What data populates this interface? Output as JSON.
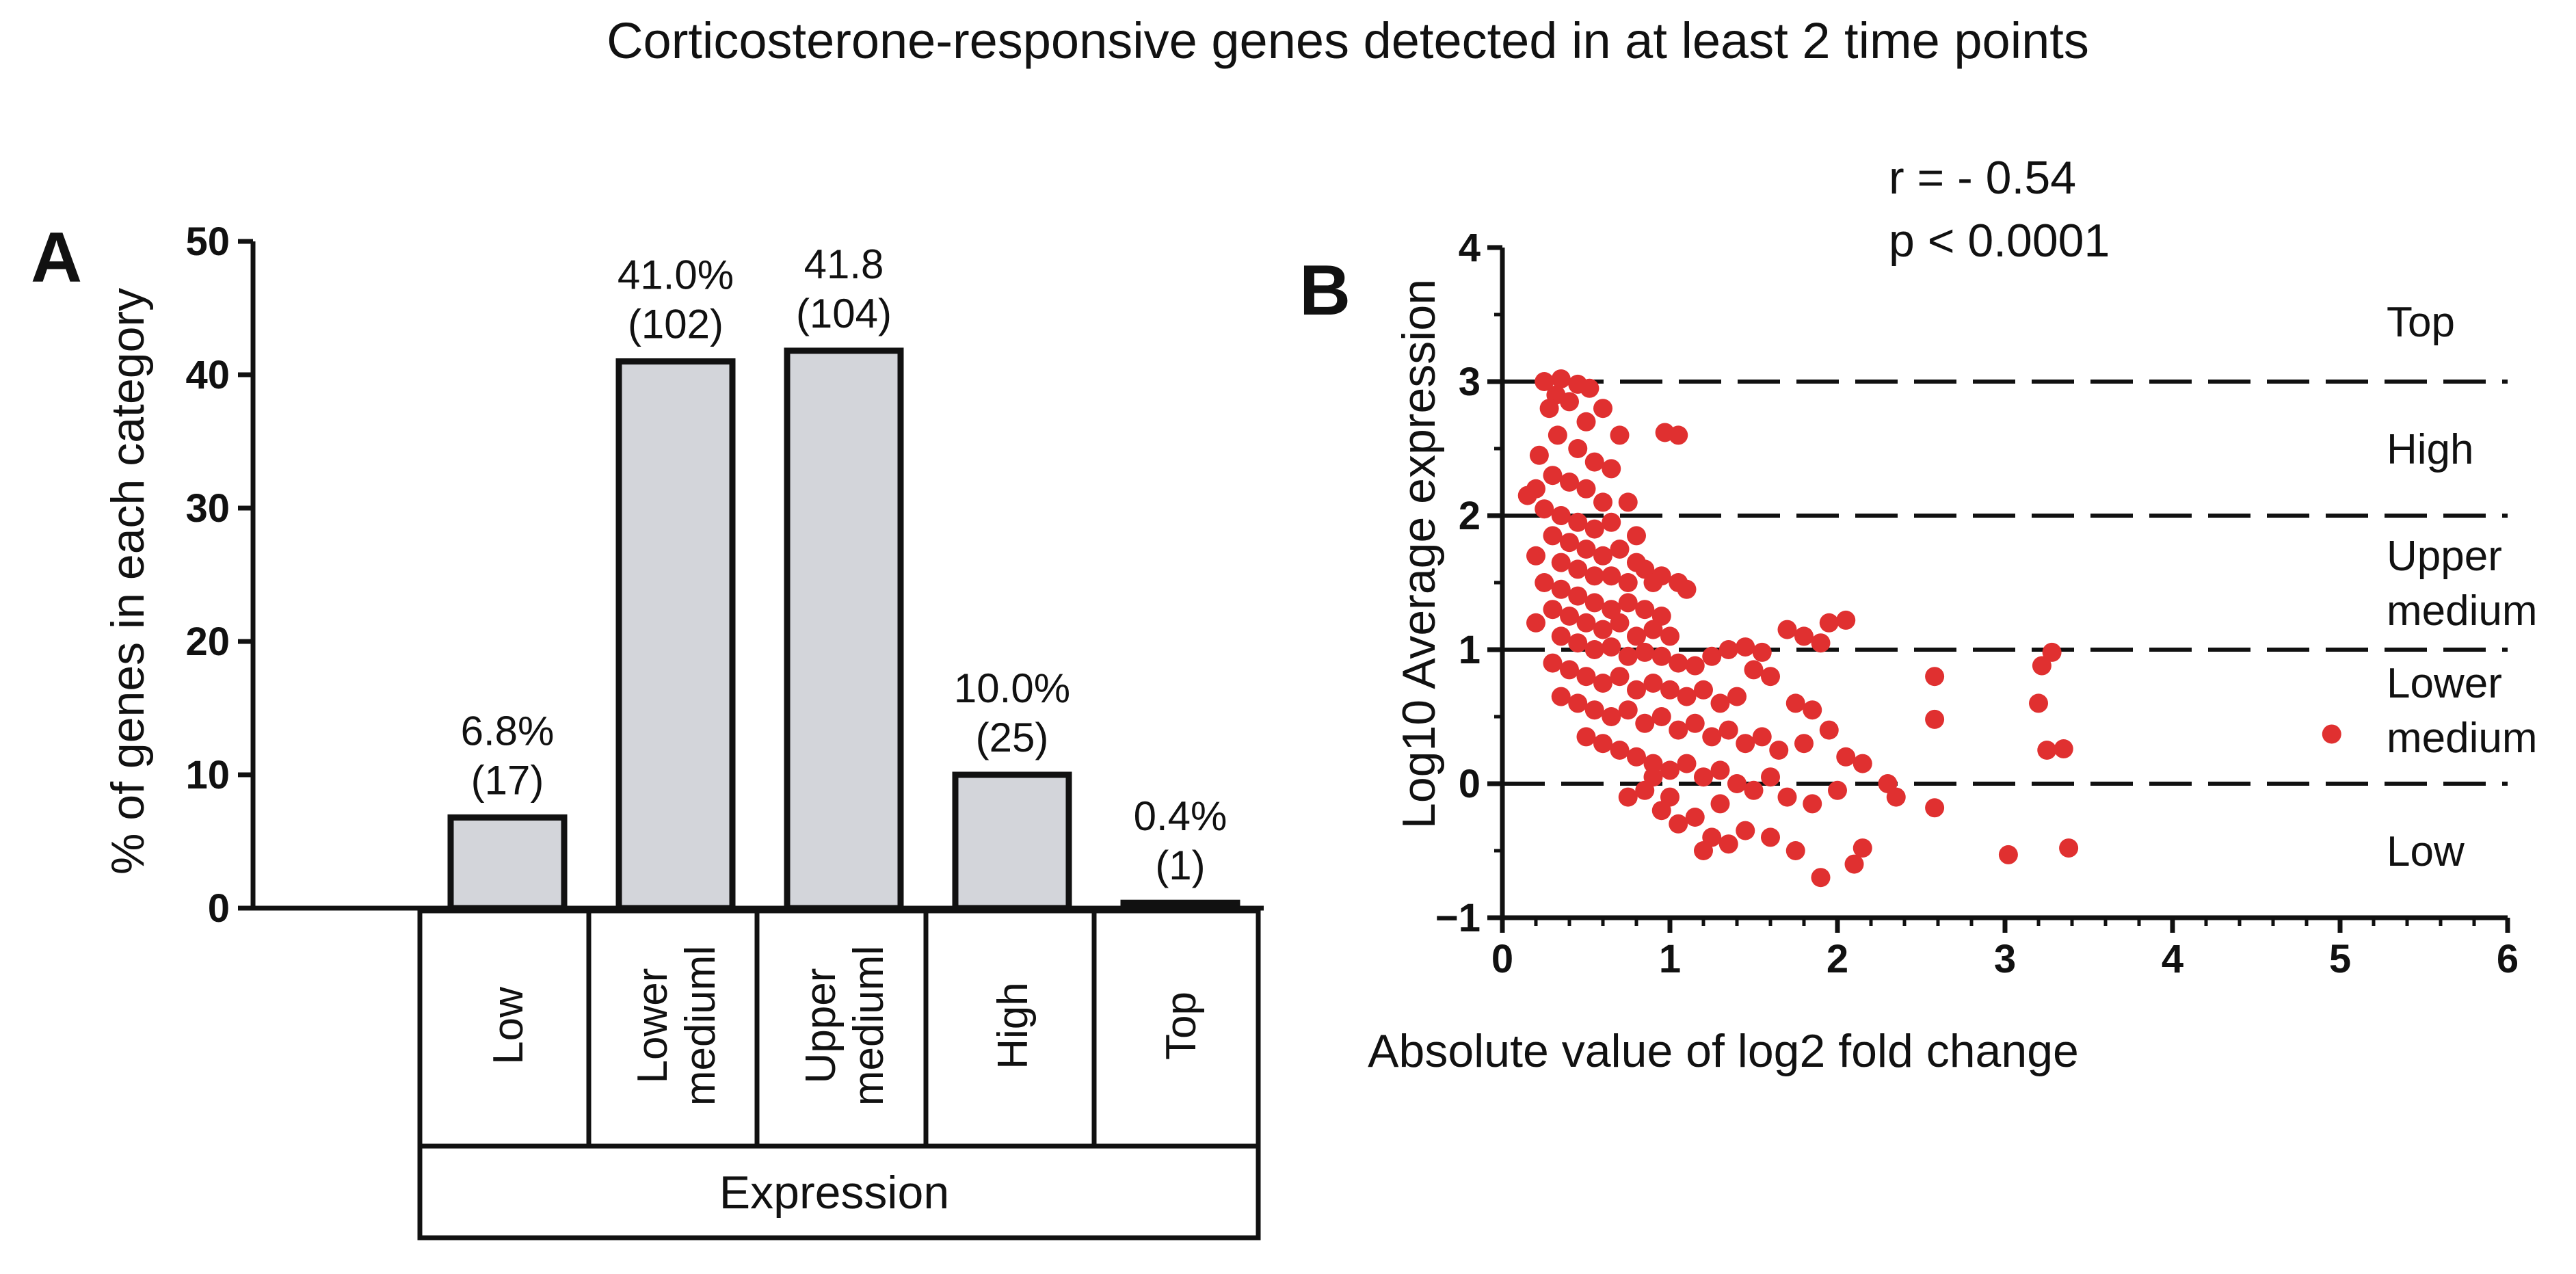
{
  "figure_title": "Corticosterone-responsive genes detected in at least 2 time points",
  "chart_data": [
    {
      "panel": "A",
      "type": "bar",
      "title": "",
      "ylabel": "% of genes in each category",
      "xlabel": "Expression",
      "ylim": [
        0,
        50
      ],
      "yticks": [
        "0",
        "10",
        "20",
        "30",
        "40",
        "50"
      ],
      "categories": [
        {
          "lines": [
            "Low"
          ]
        },
        {
          "lines": [
            "Lower",
            "mediuml"
          ]
        },
        {
          "lines": [
            "Upper",
            "mediuml"
          ]
        },
        {
          "lines": [
            "High"
          ]
        },
        {
          "lines": [
            "Top"
          ]
        }
      ],
      "values": [
        6.8,
        41.0,
        41.8,
        10.0,
        0.4
      ],
      "data_labels": [
        {
          "pct": "6.8%",
          "count": "(17)"
        },
        {
          "pct": "41.0%",
          "count": "(102)"
        },
        {
          "pct": "41.8",
          "count": "(104)"
        },
        {
          "pct": "10.0%",
          "count": "(25)"
        },
        {
          "pct": "0.4%",
          "count": "(1)"
        }
      ],
      "bar_color": "#d3d5da"
    },
    {
      "panel": "B",
      "type": "scatter",
      "title": "",
      "xlabel": "Absolute value of log2 fold change",
      "ylabel": "Log10  Average expression",
      "xlim": [
        0,
        6
      ],
      "ylim": [
        -1,
        4
      ],
      "xticks": [
        "0",
        "1",
        "2",
        "3",
        "4",
        "5",
        "6"
      ],
      "yticks": [
        "−1",
        "0",
        "1",
        "2",
        "3",
        "4"
      ],
      "stats": [
        "r = - 0.54",
        "p < 0.0001"
      ],
      "thresholds": [
        0,
        1,
        2,
        3
      ],
      "band_labels": [
        {
          "lines": [
            "Top"
          ],
          "y": 3.45
        },
        {
          "lines": [
            "High"
          ],
          "y": 2.5
        },
        {
          "lines": [
            "Upper",
            "medium"
          ],
          "y": 1.5
        },
        {
          "lines": [
            "Lower",
            "medium"
          ],
          "y": 0.55
        },
        {
          "lines": [
            "Low"
          ],
          "y": -0.5
        }
      ],
      "point_color": "#e03030",
      "points": [
        [
          0.25,
          3.0
        ],
        [
          0.35,
          3.02
        ],
        [
          0.45,
          2.98
        ],
        [
          0.52,
          2.95
        ],
        [
          0.32,
          2.9
        ],
        [
          0.4,
          2.85
        ],
        [
          0.6,
          2.8
        ],
        [
          0.5,
          2.7
        ],
        [
          0.28,
          2.8
        ],
        [
          0.7,
          2.6
        ],
        [
          0.97,
          2.62
        ],
        [
          1.05,
          2.6
        ],
        [
          0.45,
          2.5
        ],
        [
          0.33,
          2.6
        ],
        [
          0.22,
          2.45
        ],
        [
          0.55,
          2.4
        ],
        [
          0.65,
          2.35
        ],
        [
          0.3,
          2.3
        ],
        [
          0.4,
          2.25
        ],
        [
          0.2,
          2.2
        ],
        [
          0.15,
          2.15
        ],
        [
          0.5,
          2.2
        ],
        [
          0.6,
          2.1
        ],
        [
          0.75,
          2.1
        ],
        [
          0.25,
          2.05
        ],
        [
          0.35,
          2.0
        ],
        [
          0.45,
          1.95
        ],
        [
          0.55,
          1.9
        ],
        [
          0.65,
          1.95
        ],
        [
          0.8,
          1.85
        ],
        [
          0.3,
          1.85
        ],
        [
          0.4,
          1.8
        ],
        [
          0.5,
          1.75
        ],
        [
          0.6,
          1.7
        ],
        [
          0.7,
          1.75
        ],
        [
          0.8,
          1.65
        ],
        [
          0.2,
          1.7
        ],
        [
          0.35,
          1.65
        ],
        [
          0.45,
          1.6
        ],
        [
          0.55,
          1.55
        ],
        [
          0.65,
          1.55
        ],
        [
          0.75,
          1.5
        ],
        [
          0.85,
          1.6
        ],
        [
          0.9,
          1.5
        ],
        [
          0.95,
          1.55
        ],
        [
          1.05,
          1.5
        ],
        [
          1.1,
          1.45
        ],
        [
          0.25,
          1.5
        ],
        [
          0.35,
          1.45
        ],
        [
          0.45,
          1.4
        ],
        [
          0.55,
          1.35
        ],
        [
          0.65,
          1.3
        ],
        [
          0.75,
          1.35
        ],
        [
          0.85,
          1.3
        ],
        [
          0.95,
          1.25
        ],
        [
          0.3,
          1.3
        ],
        [
          0.4,
          1.25
        ],
        [
          0.5,
          1.2
        ],
        [
          0.6,
          1.15
        ],
        [
          0.7,
          1.2
        ],
        [
          0.8,
          1.1
        ],
        [
          0.9,
          1.15
        ],
        [
          1.0,
          1.1
        ],
        [
          0.2,
          1.2
        ],
        [
          0.35,
          1.1
        ],
        [
          0.45,
          1.05
        ],
        [
          0.55,
          1.0
        ],
        [
          0.65,
          1.02
        ],
        [
          0.75,
          0.95
        ],
        [
          0.85,
          0.98
        ],
        [
          0.95,
          0.95
        ],
        [
          1.05,
          0.9
        ],
        [
          1.15,
          0.88
        ],
        [
          1.25,
          0.95
        ],
        [
          1.35,
          1.0
        ],
        [
          1.45,
          1.02
        ],
        [
          1.55,
          0.98
        ],
        [
          1.7,
          1.15
        ],
        [
          1.8,
          1.1
        ],
        [
          1.95,
          1.2
        ],
        [
          2.05,
          1.22
        ],
        [
          1.9,
          1.05
        ],
        [
          0.3,
          0.9
        ],
        [
          0.4,
          0.85
        ],
        [
          0.5,
          0.8
        ],
        [
          0.6,
          0.75
        ],
        [
          0.7,
          0.8
        ],
        [
          0.8,
          0.7
        ],
        [
          0.9,
          0.75
        ],
        [
          1.0,
          0.7
        ],
        [
          1.1,
          0.65
        ],
        [
          1.2,
          0.7
        ],
        [
          1.3,
          0.6
        ],
        [
          1.4,
          0.65
        ],
        [
          1.5,
          0.85
        ],
        [
          1.6,
          0.8
        ],
        [
          1.75,
          0.6
        ],
        [
          1.85,
          0.55
        ],
        [
          0.35,
          0.65
        ],
        [
          0.45,
          0.6
        ],
        [
          0.55,
          0.55
        ],
        [
          0.65,
          0.5
        ],
        [
          0.75,
          0.55
        ],
        [
          0.85,
          0.45
        ],
        [
          0.95,
          0.5
        ],
        [
          1.05,
          0.4
        ],
        [
          1.15,
          0.45
        ],
        [
          1.25,
          0.35
        ],
        [
          1.35,
          0.4
        ],
        [
          1.45,
          0.3
        ],
        [
          1.55,
          0.35
        ],
        [
          1.65,
          0.25
        ],
        [
          1.8,
          0.3
        ],
        [
          1.95,
          0.4
        ],
        [
          2.05,
          0.2
        ],
        [
          0.5,
          0.35
        ],
        [
          0.6,
          0.3
        ],
        [
          0.7,
          0.25
        ],
        [
          0.8,
          0.2
        ],
        [
          0.9,
          0.15
        ],
        [
          1.0,
          0.1
        ],
        [
          1.1,
          0.15
        ],
        [
          1.2,
          0.05
        ],
        [
          1.3,
          0.1
        ],
        [
          1.4,
          0.0
        ],
        [
          1.5,
          -0.05
        ],
        [
          1.6,
          0.05
        ],
        [
          1.7,
          -0.1
        ],
        [
          1.85,
          -0.15
        ],
        [
          2.0,
          -0.05
        ],
        [
          2.15,
          0.15
        ],
        [
          2.3,
          0.0
        ],
        [
          0.75,
          -0.1
        ],
        [
          0.95,
          -0.2
        ],
        [
          1.05,
          -0.3
        ],
        [
          1.15,
          -0.25
        ],
        [
          1.25,
          -0.4
        ],
        [
          1.35,
          -0.45
        ],
        [
          1.45,
          -0.35
        ],
        [
          1.6,
          -0.4
        ],
        [
          1.75,
          -0.5
        ],
        [
          1.9,
          -0.7
        ],
        [
          2.1,
          -0.6
        ],
        [
          2.15,
          -0.48
        ],
        [
          2.35,
          -0.1
        ],
        [
          1.0,
          -0.1
        ],
        [
          1.2,
          -0.5
        ],
        [
          0.9,
          0.05
        ],
        [
          0.85,
          -0.05
        ],
        [
          1.3,
          -0.15
        ],
        [
          2.58,
          0.8
        ],
        [
          2.58,
          0.48
        ],
        [
          2.58,
          -0.18
        ],
        [
          3.22,
          0.88
        ],
        [
          3.28,
          0.98
        ],
        [
          3.2,
          0.6
        ],
        [
          3.25,
          0.25
        ],
        [
          3.35,
          0.26
        ],
        [
          3.02,
          -0.53
        ],
        [
          3.38,
          -0.48
        ],
        [
          4.95,
          0.37
        ]
      ]
    }
  ]
}
